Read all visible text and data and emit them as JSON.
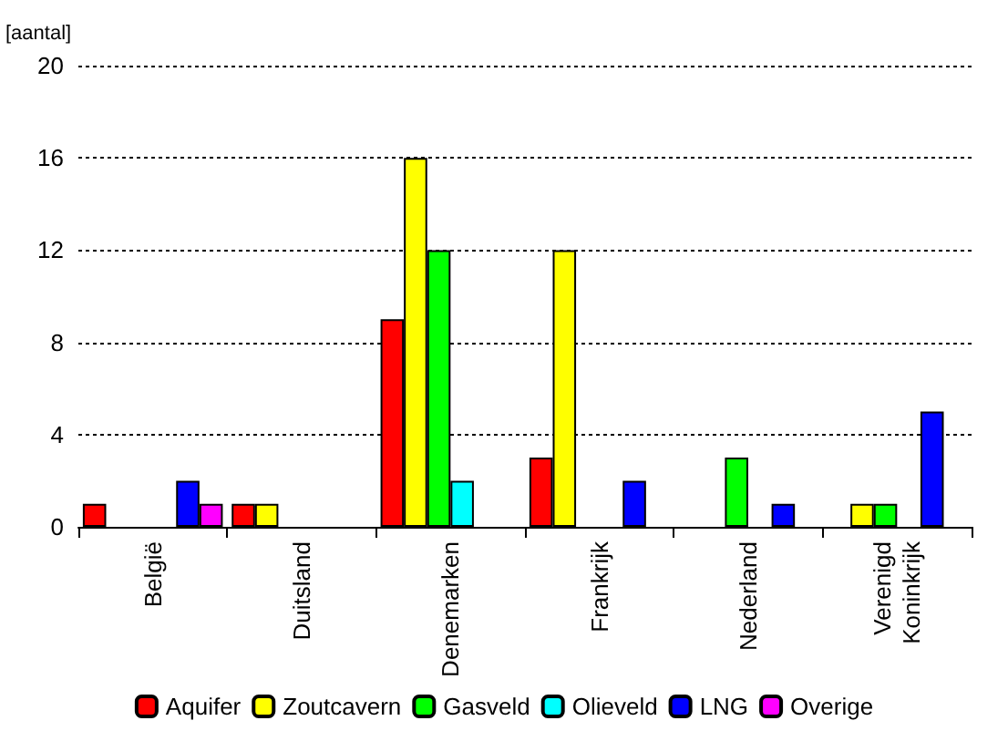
{
  "chart_data": {
    "type": "bar",
    "ylabel": "[aantal]",
    "categories": [
      "België",
      "Duitsland",
      "Denemarken",
      "Frankrijk",
      "Nederland",
      "Verenigd Koninkrijk"
    ],
    "series": [
      {
        "name": "Aquifer",
        "color": "#ff0000",
        "values": [
          1,
          1,
          9,
          3,
          null,
          null
        ]
      },
      {
        "name": "Zoutcavern",
        "color": "#ffff00",
        "values": [
          null,
          1,
          16,
          12,
          null,
          1
        ]
      },
      {
        "name": "Gasveld",
        "color": "#00ff00",
        "values": [
          null,
          null,
          12,
          null,
          3,
          1
        ]
      },
      {
        "name": "Olieveld",
        "color": "#00ffff",
        "values": [
          null,
          null,
          2,
          null,
          null,
          null
        ]
      },
      {
        "name": "LNG",
        "color": "#0000ff",
        "values": [
          2,
          null,
          null,
          2,
          1,
          5
        ]
      },
      {
        "name": "Overige",
        "color": "#ff00ff",
        "values": [
          1,
          null,
          null,
          null,
          null,
          null
        ]
      }
    ],
    "ylim": [
      0,
      20
    ],
    "yticks": [
      0,
      4,
      8,
      12,
      16,
      20
    ],
    "grid": "y",
    "legend": "bottom"
  }
}
